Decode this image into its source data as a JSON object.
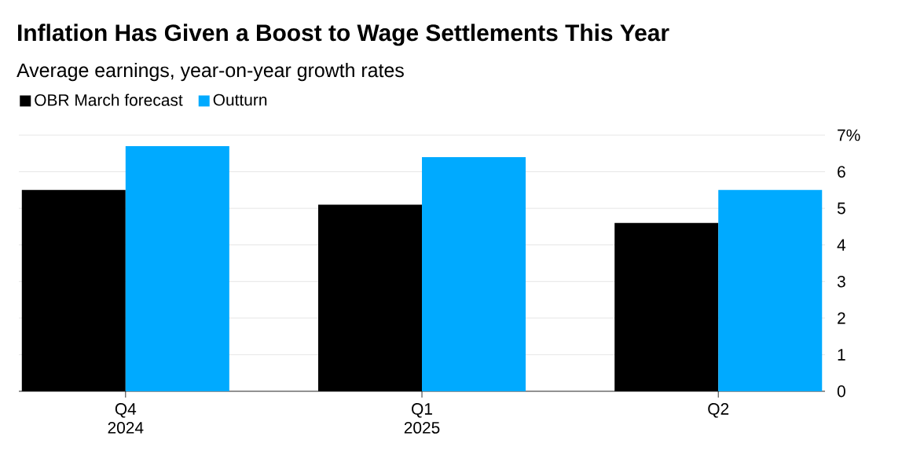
{
  "chart_data": {
    "type": "bar",
    "title": "Inflation Has Given a Boost to Wage Settlements This Year",
    "subtitle": "Average earnings, year-on-year growth rates",
    "categories": [
      "Q4 2024",
      "Q1 2025",
      "Q2"
    ],
    "series": [
      {
        "name": "OBR March forecast",
        "color": "#000000",
        "values": [
          5.5,
          5.1,
          4.6
        ]
      },
      {
        "name": "Outturn",
        "color": "#00aaff",
        "values": [
          6.7,
          6.4,
          5.5
        ]
      }
    ],
    "ylim": [
      0,
      7
    ],
    "yticks": [
      0,
      1,
      2,
      3,
      4,
      5,
      6,
      {
        "value": 7,
        "label": "7%"
      }
    ],
    "grid": "y",
    "legend": "top left"
  }
}
